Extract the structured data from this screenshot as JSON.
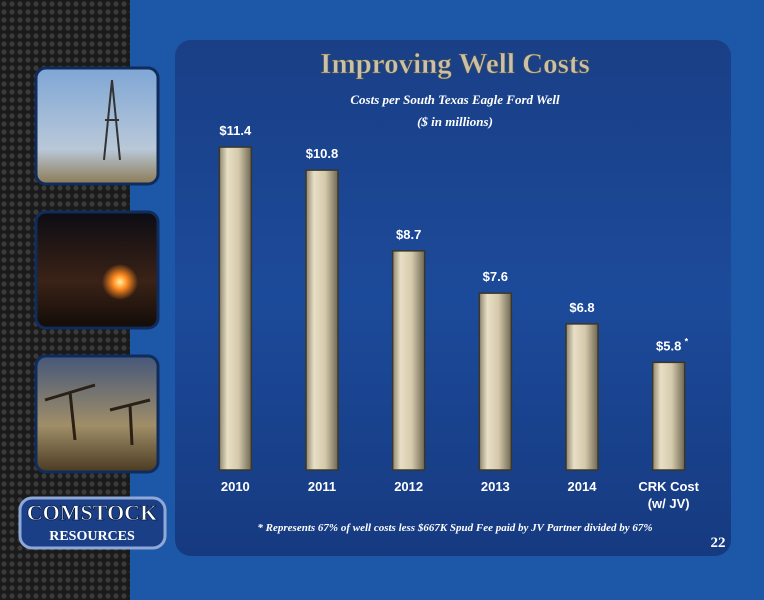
{
  "chart_data": {
    "type": "bar",
    "title": "Improving Well Costs",
    "subtitle": "Costs per South Texas Eagle Ford Well",
    "units_note": "($ in millions)",
    "categories": [
      "2010",
      "2011",
      "2012",
      "2013",
      "2014",
      "CRK Cost (w/ JV)"
    ],
    "values": [
      11.4,
      10.8,
      8.7,
      7.6,
      6.8,
      5.8
    ],
    "value_labels": [
      "$11.4",
      "$10.8",
      "$8.7",
      "$7.6",
      "$6.8",
      "$5.8"
    ],
    "footnote_marker": "*",
    "footnote": "* Represents 67% of well costs less $667K Spud Fee paid by JV Partner divided by 67%",
    "color": "#d8cdb0",
    "ylim": [
      3,
      12
    ]
  },
  "page_number": "22",
  "logo": {
    "line1": "COMSTOCK",
    "line2": "RESOURCES"
  }
}
